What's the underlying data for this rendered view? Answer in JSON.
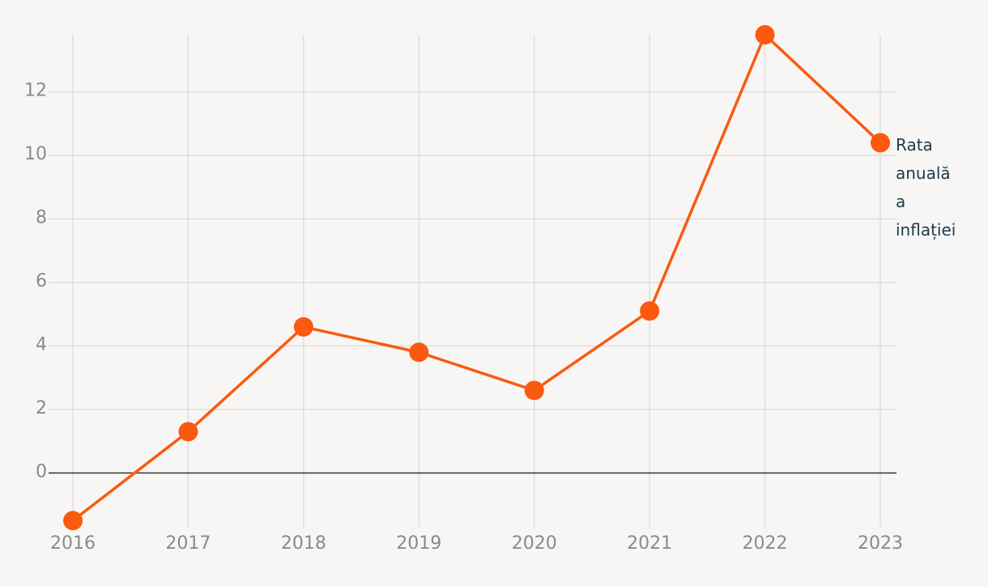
{
  "chart_data": {
    "type": "line",
    "categories": [
      "2016",
      "2017",
      "2018",
      "2019",
      "2020",
      "2021",
      "2022",
      "2023"
    ],
    "series": [
      {
        "name": "Rata anuală a inflației",
        "color": "#fa5a0f",
        "values": [
          -1.5,
          1.3,
          4.6,
          3.8,
          2.6,
          5.1,
          13.8,
          10.4
        ]
      }
    ],
    "ylim": [
      -1.7,
      13.8
    ],
    "yticks": [
      0,
      2,
      4,
      6,
      8,
      10,
      12
    ],
    "grid": true
  }
}
